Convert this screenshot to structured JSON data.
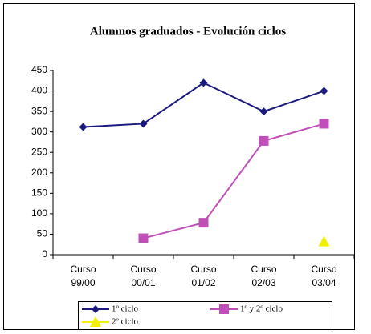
{
  "chart_data": {
    "type": "line",
    "title": "Alumnos graduados - Evolución ciclos",
    "categories": [
      "Curso 99/00",
      "Curso 00/01",
      "Curso 01/02",
      "Curso 02/03",
      "Curso 03/04"
    ],
    "series": [
      {
        "name": "1º ciclo",
        "color": "#1a1a80",
        "marker": "diamond",
        "values": [
          312,
          320,
          420,
          350,
          400
        ]
      },
      {
        "name": "1º y 2º ciclo",
        "color": "#c050b8",
        "marker": "square",
        "values": [
          null,
          40,
          78,
          278,
          320
        ]
      },
      {
        "name": "2º ciclo",
        "color": "#f0f000",
        "marker": "triangle",
        "values": [
          null,
          null,
          null,
          null,
          32
        ]
      }
    ],
    "ylim": [
      0,
      450
    ],
    "yticks": [
      0,
      50,
      100,
      150,
      200,
      250,
      300,
      350,
      400,
      450
    ],
    "grid": false,
    "legend": "bottom"
  }
}
